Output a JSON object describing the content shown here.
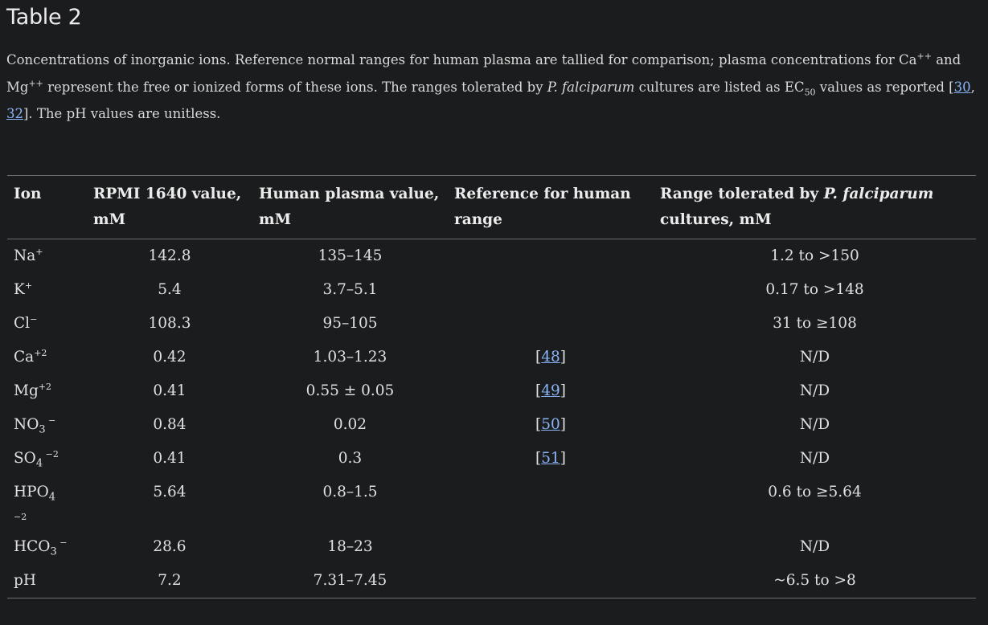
{
  "title": "Table 2",
  "caption": {
    "part1": "Concentrations of inorganic ions. Reference normal ranges for human plasma are tallied for comparison; plasma concentrations for Ca",
    "ca_sup": "++",
    "part2": " and Mg",
    "mg_sup": "++",
    "part3": " represent the free or ionized forms of these ions. The ranges tolerated by ",
    "species": "P. falciparum",
    "part4": " cultures are listed as EC",
    "ec_sub": "50",
    "part5": " values as reported [",
    "ref1": "30",
    "sep": ", ",
    "ref2": "32",
    "part6": "]. The pH values are unitless."
  },
  "table": {
    "headers": {
      "ion": "Ion",
      "rpmi": "RPMI 1640 value, mM",
      "plasma": "Human plasma value, mM",
      "reference": "Reference for human range",
      "tolerated_prefix": "Range tolerated by ",
      "tolerated_species": "P. falciparum",
      "tolerated_suffix": " cultures, mM"
    },
    "rows": [
      {
        "ion_base": "Na",
        "ion_sub": "",
        "ion_sup": "+",
        "rpmi": "142.8",
        "plasma": "135–145",
        "ref_open": "",
        "ref": "",
        "ref_close": "",
        "tolerated": "1.2 to >150"
      },
      {
        "ion_base": "K",
        "ion_sub": "",
        "ion_sup": "+",
        "rpmi": "5.4",
        "plasma": "3.7–5.1",
        "ref_open": "",
        "ref": "",
        "ref_close": "",
        "tolerated": "0.17 to >148"
      },
      {
        "ion_base": "Cl",
        "ion_sub": "",
        "ion_sup": "−",
        "rpmi": "108.3",
        "plasma": "95–105",
        "ref_open": "",
        "ref": "",
        "ref_close": "",
        "tolerated": "31 to ≥108"
      },
      {
        "ion_base": "Ca",
        "ion_sub": "",
        "ion_sup": "+2",
        "rpmi": "0.42",
        "plasma": "1.03–1.23",
        "ref_open": "[",
        "ref": "48",
        "ref_close": "]",
        "tolerated": "N/D"
      },
      {
        "ion_base": "Mg",
        "ion_sub": "",
        "ion_sup": "+2",
        "rpmi": "0.41",
        "plasma": "0.55 ± 0.05",
        "ref_open": "[",
        "ref": "49",
        "ref_close": "]",
        "tolerated": "N/D"
      },
      {
        "ion_base": "NO",
        "ion_sub": "3",
        "ion_sup": " −",
        "rpmi": "0.84",
        "plasma": "0.02",
        "ref_open": "[",
        "ref": "50",
        "ref_close": "]",
        "tolerated": "N/D"
      },
      {
        "ion_base": "SO",
        "ion_sub": "4",
        "ion_sup": " −2",
        "rpmi": "0.41",
        "plasma": "0.3",
        "ref_open": "[",
        "ref": "51",
        "ref_close": "]",
        "tolerated": "N/D"
      },
      {
        "ion_base": "HPO",
        "ion_sub": "4",
        "ion_sup": "−2",
        "rpmi": "5.64",
        "plasma": "0.8–1.5",
        "ref_open": "",
        "ref": "",
        "ref_close": "",
        "tolerated": "0.6 to ≥5.64"
      },
      {
        "ion_base": "HCO",
        "ion_sub": "3",
        "ion_sup": " −",
        "rpmi": "28.6",
        "plasma": "18–23",
        "ref_open": "",
        "ref": "",
        "ref_close": "",
        "tolerated": "N/D"
      },
      {
        "ion_base": "pH",
        "ion_sub": "",
        "ion_sup": "",
        "rpmi": "7.2",
        "plasma": "7.31–7.45",
        "ref_open": "",
        "ref": "",
        "ref_close": "",
        "tolerated": "~6.5 to >8"
      }
    ]
  }
}
